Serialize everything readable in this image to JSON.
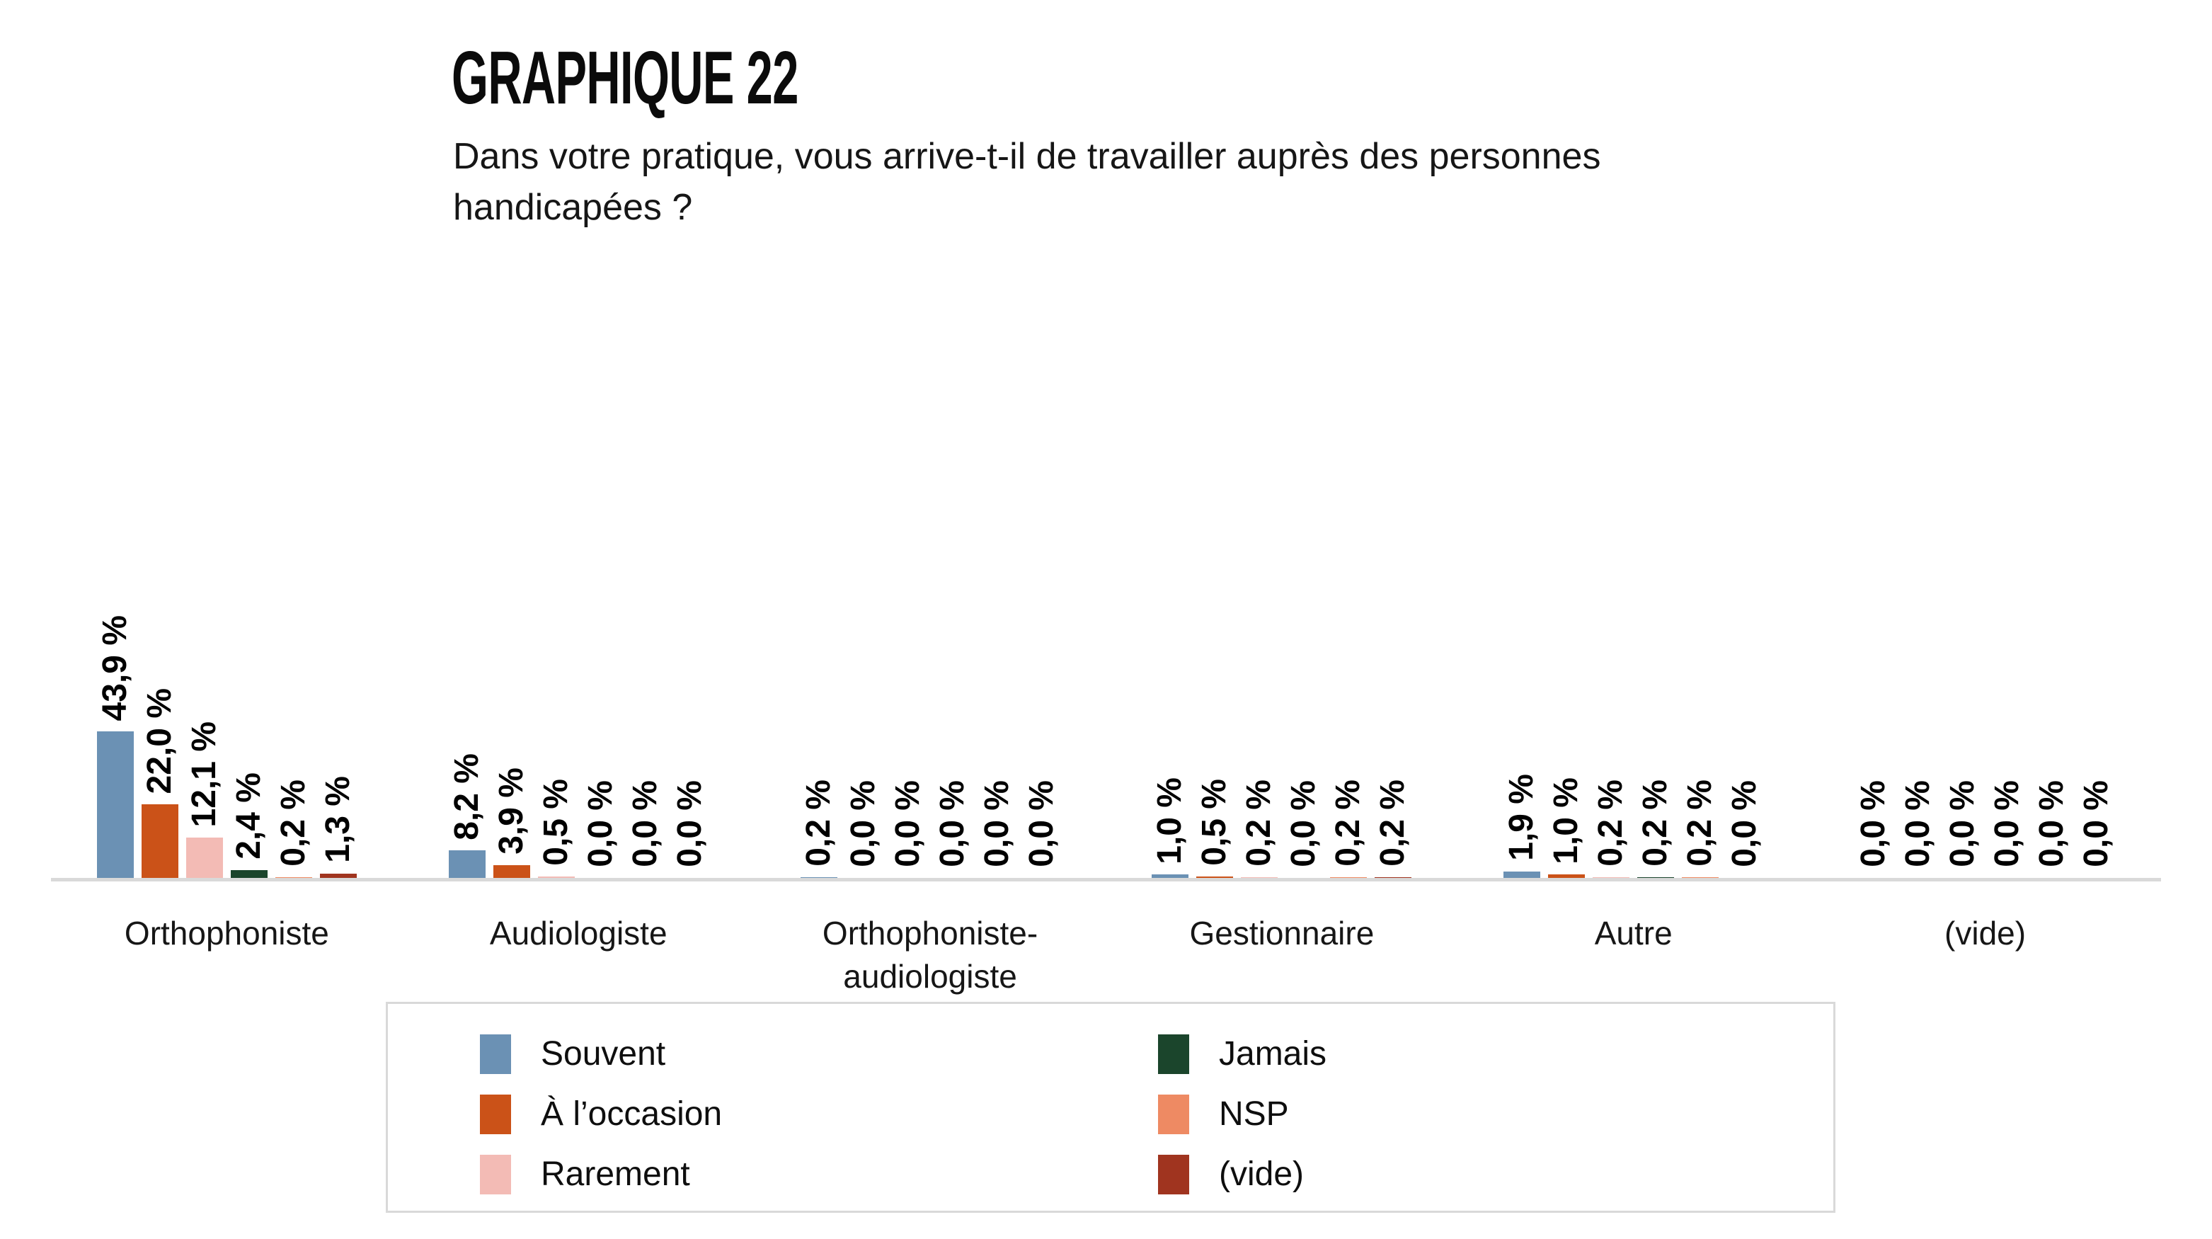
{
  "title": "GRAPHIQUE 22",
  "subtitle": "Dans votre pratique, vous arrive-t-il de travailler auprès des personnes handicapées ?",
  "chart_data": {
    "type": "bar",
    "title": "GRAPHIQUE 22",
    "subtitle": "Dans votre pratique, vous arrive-t-il de travailler auprès des personnes handicapées ?",
    "unit": "%",
    "grid": false,
    "y_axis_visible": false,
    "ylim": [
      0,
      45
    ],
    "legend_position": "bottom",
    "categories": [
      "Orthophoniste",
      "Audiologiste",
      "Orthophoniste-audiologiste",
      "Gestionnaire",
      "Autre",
      "(vide)"
    ],
    "series": [
      {
        "name": "Souvent",
        "color": "#6b91b4",
        "values": [
          43.9,
          8.2,
          0.2,
          1.0,
          1.9,
          0.0
        ],
        "labels": [
          "43,9 %",
          "8,2 %",
          "0,2 %",
          "1,0 %",
          "1,9 %",
          "0,0 %"
        ]
      },
      {
        "name": "À l’occasion",
        "color": "#cb5218",
        "values": [
          22.0,
          3.9,
          0.0,
          0.5,
          1.0,
          0.0
        ],
        "labels": [
          "22,0 %",
          "3,9 %",
          "0,0 %",
          "0,5 %",
          "1,0 %",
          "0,0 %"
        ]
      },
      {
        "name": "Rarement",
        "color": "#f3bbb5",
        "values": [
          12.1,
          0.5,
          0.0,
          0.2,
          0.2,
          0.0
        ],
        "labels": [
          "12,1 %",
          "0,5 %",
          "0,0 %",
          "0,2 %",
          "0,2 %",
          "0,0 %"
        ]
      },
      {
        "name": "Jamais",
        "color": "#1b452c",
        "values": [
          2.4,
          0.0,
          0.0,
          0.0,
          0.2,
          0.0
        ],
        "labels": [
          "2,4 %",
          "0,0 %",
          "0,0 %",
          "0,0 %",
          "0,2 %",
          "0,0 %"
        ]
      },
      {
        "name": "NSP",
        "color": "#ee8a63",
        "values": [
          0.2,
          0.0,
          0.0,
          0.2,
          0.2,
          0.0
        ],
        "labels": [
          "0,2 %",
          "0,0 %",
          "0,0 %",
          "0,2 %",
          "0,2 %",
          "0,0 %"
        ]
      },
      {
        "name": "(vide)",
        "color": "#a0341f",
        "values": [
          1.3,
          0.0,
          0.0,
          0.2,
          0.0,
          0.0
        ],
        "labels": [
          "1,3 %",
          "0,0 %",
          "0,0 %",
          "0,2 %",
          "0,0 %",
          "0,0 %"
        ]
      }
    ],
    "legend_columns": [
      [
        "Souvent",
        "À l’occasion",
        "Rarement"
      ],
      [
        "Jamais",
        "NSP",
        "(vide)"
      ]
    ]
  },
  "style": {
    "axis_line_color": "#d9d9d9",
    "background": "#ffffff",
    "label_color": "#000000"
  }
}
